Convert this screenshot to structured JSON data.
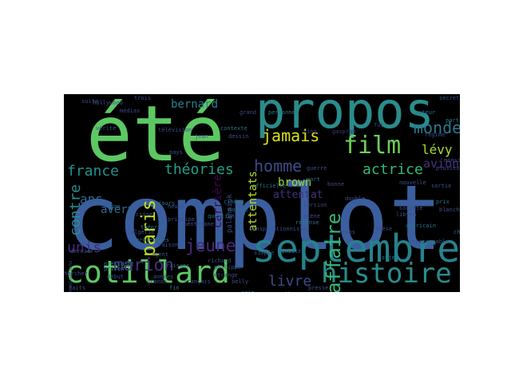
{
  "wordcloud": {
    "words": [
      {
        "text": "complot",
        "color": "#3b5f9e"
      },
      {
        "text": "été",
        "color": "#5cc863"
      },
      {
        "text": "propos",
        "color": "#2a8c8c"
      },
      {
        "text": "septembre",
        "color": "#26828e"
      },
      {
        "text": "cotillard",
        "color": "#5cc863"
      },
      {
        "text": "histoire",
        "color": "#2a8c8c"
      },
      {
        "text": "film",
        "color": "#6ece58"
      },
      {
        "text": "jamais",
        "color": "#d8e219"
      },
      {
        "text": "monde",
        "color": "#2a788e"
      },
      {
        "text": "homme",
        "color": "#3e4a89"
      },
      {
        "text": "affaire",
        "color": "#35b779"
      },
      {
        "text": "paris",
        "color": "#c2df23"
      },
      {
        "text": "marion",
        "color": "#46327e"
      },
      {
        "text": "jeune",
        "color": "#482878"
      },
      {
        "text": "livre",
        "color": "#3e4a89"
      },
      {
        "text": "actrice",
        "color": "#35b779"
      },
      {
        "text": "théories",
        "color": "#1fa187"
      },
      {
        "text": "france",
        "color": "#21918c"
      },
      {
        "text": "contre",
        "color": "#2a8c8c"
      },
      {
        "text": "unis",
        "color": "#482878"
      },
      {
        "text": "ans",
        "color": "#31688e"
      },
      {
        "text": "bernard",
        "color": "#26828e"
      },
      {
        "text": "carrière",
        "color": "#440154"
      },
      {
        "text": "attentats",
        "color": "#b5de2b"
      },
      {
        "text": "attentat",
        "color": "#46327e"
      },
      {
        "text": "lévy",
        "color": "#a5db36"
      },
      {
        "text": "avion",
        "color": "#46327e"
      },
      {
        "text": "brown",
        "color": "#a0da39"
      },
      {
        "text": "avery",
        "color": "#31688e"
      },
      {
        "text": "palahniuk",
        "color": "#3e4a89"
      },
      {
        "text": "king",
        "color": "#443983"
      },
      {
        "text": "gaspram",
        "color": "#46327e"
      },
      {
        "text": "conspirationniste",
        "color": "#3b528b"
      },
      {
        "text": "fut",
        "color": "#3e4a89"
      },
      {
        "text": "principe",
        "color": "#3e4a89"
      },
      {
        "text": "personnes",
        "color": "#2c728e"
      },
      {
        "text": "sortie",
        "color": "#3b528b"
      },
      {
        "text": "libyen",
        "color": "#3e4a89"
      },
      {
        "text": "nominations",
        "color": "#3e4a89"
      },
      {
        "text": "cinéma",
        "color": "#2a788e"
      },
      {
        "text": "double",
        "color": "#3b528b"
      },
      {
        "text": "société",
        "color": "#3e4a89"
      },
      {
        "text": "américain",
        "color": "#2c728e"
      },
      {
        "text": "prix",
        "color": "#2c728e"
      },
      {
        "text": "version",
        "color": "#3e4a89"
      },
      {
        "text": "blanche",
        "color": "#3b528b"
      },
      {
        "text": "officielle",
        "color": "#2c728e"
      },
      {
        "text": "thèse",
        "color": "#3e4a89"
      },
      {
        "text": "rôle",
        "color": "#3b528b"
      },
      {
        "text": "télévision",
        "color": "#3e4a89"
      },
      {
        "text": "auteur",
        "color": "#2c728e"
      },
      {
        "text": "plusieurs",
        "color": "#3e4a89"
      },
      {
        "text": "vérité",
        "color": "#3b528b"
      },
      {
        "text": "médias",
        "color": "#3e4a89"
      },
      {
        "text": "théorie",
        "color": "#2c728e"
      },
      {
        "text": "pentagone",
        "color": "#3b528b"
      },
      {
        "text": "richard",
        "color": "#3e4a89"
      },
      {
        "text": "philippe",
        "color": "#3b528b"
      },
      {
        "text": "président",
        "color": "#2c728e"
      },
      {
        "text": "algérie",
        "color": "#3e4a89"
      },
      {
        "text": "crise",
        "color": "#3b528b"
      },
      {
        "text": "cherchez",
        "color": "#3e4a89"
      },
      {
        "text": "prison",
        "color": "#2c728e"
      },
      {
        "text": "années",
        "color": "#3b528b"
      },
      {
        "text": "début",
        "color": "#3e4a89"
      },
      {
        "text": "suite",
        "color": "#3e4a89"
      },
      {
        "text": "fin",
        "color": "#2c728e"
      },
      {
        "text": "agent",
        "color": "#3b528b"
      },
      {
        "text": "étrange",
        "color": "#3e4a89"
      },
      {
        "text": "jours",
        "color": "#2c728e"
      },
      {
        "text": "heure",
        "color": "#3b528b"
      },
      {
        "text": "trois",
        "color": "#3e4a89"
      },
      {
        "text": "dan",
        "color": "#2c728e"
      },
      {
        "text": "hollywood",
        "color": "#3b528b"
      },
      {
        "text": "scène",
        "color": "#3e4a89"
      },
      {
        "text": "réponse",
        "color": "#2c728e"
      },
      {
        "text": "nouvelle",
        "color": "#3b528b"
      },
      {
        "text": "bonne",
        "color": "#3e4a89"
      },
      {
        "text": "partie",
        "color": "#2c728e"
      },
      {
        "text": "secret",
        "color": "#3b528b"
      },
      {
        "text": "français",
        "color": "#3e4a89"
      },
      {
        "text": "moment",
        "color": "#2c728e"
      },
      {
        "text": "monsieur",
        "color": "#3b528b"
      },
      {
        "text": "simple",
        "color": "#3e4a89"
      },
      {
        "text": "contexte",
        "color": "#2c728e"
      },
      {
        "text": "belly",
        "color": "#3b528b"
      },
      {
        "text": "grand",
        "color": "#3e4a89"
      },
      {
        "text": "question",
        "color": "#2c728e"
      },
      {
        "text": "frans",
        "color": "#3b528b"
      },
      {
        "text": "responsable",
        "color": "#3e4a89"
      },
      {
        "text": "régime",
        "color": "#3e4a89"
      },
      {
        "text": "sujet",
        "color": "#2c728e"
      },
      {
        "text": "dessin",
        "color": "#3b528b"
      },
      {
        "text": "noir",
        "color": "#3e4a89"
      },
      {
        "text": "chose",
        "color": "#2c728e"
      },
      {
        "text": "raisons",
        "color": "#3b528b"
      },
      {
        "text": "grands",
        "color": "#3e4a89"
      },
      {
        "text": "grotesques",
        "color": "#2c728e"
      },
      {
        "text": "jean",
        "color": "#3b528b"
      },
      {
        "text": "guerre",
        "color": "#3e4a89"
      },
      {
        "text": "mort",
        "color": "#2c728e"
      },
      {
        "text": "pays",
        "color": "#3b528b"
      },
      {
        "text": "dernier",
        "color": "#3e4a89"
      },
      {
        "text": "ministre",
        "color": "#2c728e"
      },
      {
        "text": "presse",
        "color": "#3b528b"
      },
      {
        "text": "raison",
        "color": "#3e4a89"
      },
      {
        "text": "sein",
        "color": "#2c728e"
      },
      {
        "text": "faits",
        "color": "#3b528b"
      }
    ]
  }
}
